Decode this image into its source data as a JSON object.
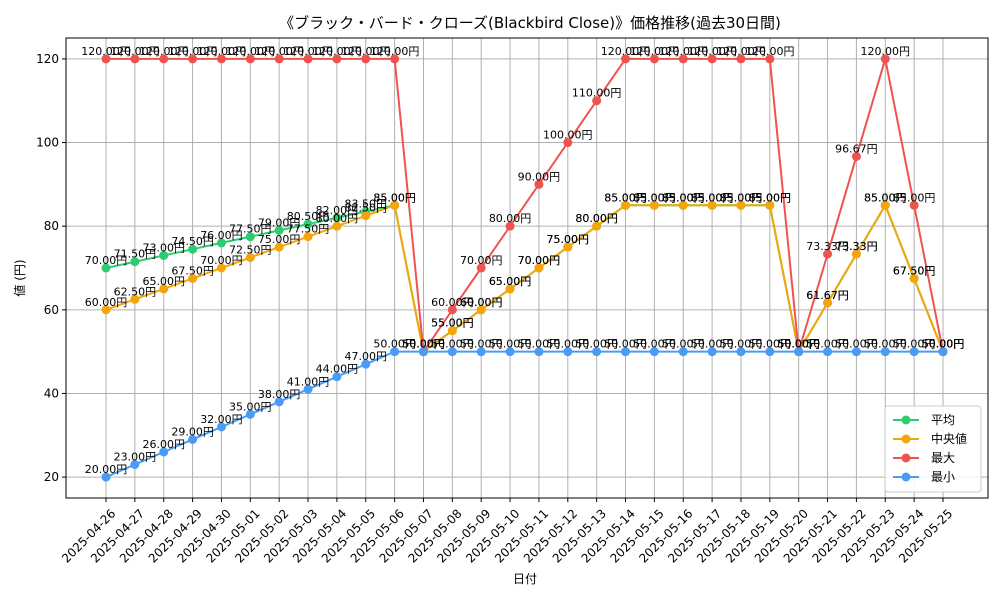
{
  "chart_data": {
    "type": "line",
    "title": "《ブラック・バード・クローズ(Blackbird Close)》価格推移(過去30日間)",
    "xlabel": "日付",
    "ylabel": "値 (円)",
    "ylim": [
      15,
      125
    ],
    "yticks": [
      20,
      40,
      60,
      80,
      100,
      120
    ],
    "grid": true,
    "legend_position": "lower-right",
    "label_suffix": "円",
    "x": [
      "2025-04-26",
      "2025-04-27",
      "2025-04-28",
      "2025-04-29",
      "2025-04-30",
      "2025-05-01",
      "2025-05-02",
      "2025-05-03",
      "2025-05-04",
      "2025-05-05",
      "2025-05-06",
      "2025-05-07",
      "2025-05-08",
      "2025-05-09",
      "2025-05-10",
      "2025-05-11",
      "2025-05-12",
      "2025-05-13",
      "2025-05-14",
      "2025-05-15",
      "2025-05-16",
      "2025-05-17",
      "2025-05-18",
      "2025-05-19",
      "2025-05-20",
      "2025-05-21",
      "2025-05-22",
      "2025-05-23",
      "2025-05-24",
      "2025-05-25"
    ],
    "series": [
      {
        "name": "平均",
        "color": "#2ecc71",
        "values": [
          70,
          71.5,
          73,
          74.5,
          76,
          77.5,
          79,
          80.5,
          82,
          83.5,
          85,
          50,
          55,
          60,
          65,
          70,
          75,
          80,
          85,
          85,
          85,
          85,
          85,
          85,
          50,
          61.67,
          73.33,
          85,
          67.5,
          50
        ]
      },
      {
        "name": "中央値",
        "color": "#f5a50a",
        "values": [
          60,
          62.5,
          65,
          67.5,
          70,
          72.5,
          75,
          77.5,
          80,
          82.5,
          85,
          50,
          55,
          60,
          65,
          70,
          75,
          80,
          85,
          85,
          85,
          85,
          85,
          85,
          50,
          61.67,
          73.33,
          85,
          67.5,
          50
        ]
      },
      {
        "name": "最大",
        "color": "#ef5350",
        "values": [
          120,
          120,
          120,
          120,
          120,
          120,
          120,
          120,
          120,
          120,
          120,
          50,
          60,
          70,
          80,
          90,
          100,
          110,
          120,
          120,
          120,
          120,
          120,
          120,
          50,
          73.33,
          96.67,
          120,
          85,
          50
        ]
      },
      {
        "name": "最小",
        "color": "#4a9bf5",
        "values": [
          20,
          23,
          26,
          29,
          32,
          35,
          38,
          41,
          44,
          47,
          50,
          50,
          50,
          50,
          50,
          50,
          50,
          50,
          50,
          50,
          50,
          50,
          50,
          50,
          50,
          50,
          50,
          50,
          50,
          50
        ]
      }
    ]
  }
}
